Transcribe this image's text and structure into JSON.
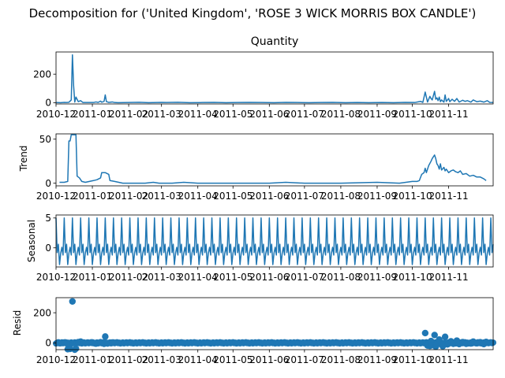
{
  "figure": {
    "suptitle": "Decomposition for ('United Kingdom', 'ROSE 3 WICK MORRIS BOX CANDLE')",
    "series_color": "#1f77b4",
    "x_tick_labels": [
      "2010-12",
      "2011-01",
      "2011-02",
      "2011-03",
      "2011-04",
      "2011-05",
      "2011-06",
      "2011-07",
      "2011-08",
      "2011-09",
      "2011-10",
      "2011-11"
    ]
  },
  "chart_data": [
    {
      "type": "line",
      "title": "Quantity",
      "ylabel": "",
      "xlim": [
        "2010-12-01",
        "2011-12-09"
      ],
      "ylim": [
        -8,
        355
      ],
      "yticks": [
        0,
        200
      ],
      "x_ticks": [
        "2010-12-01",
        "2011-01-01",
        "2011-02-01",
        "2011-03-01",
        "2011-04-01",
        "2011-05-01",
        "2011-06-01",
        "2011-07-01",
        "2011-08-01",
        "2011-09-01",
        "2011-10-01",
        "2011-11-01"
      ],
      "points": [
        [
          "2010-12-01",
          2
        ],
        [
          "2010-12-05",
          1
        ],
        [
          "2010-12-08",
          3
        ],
        [
          "2010-12-10",
          2
        ],
        [
          "2010-12-12",
          4
        ],
        [
          "2010-12-14",
          20
        ],
        [
          "2010-12-15",
          335
        ],
        [
          "2010-12-16",
          120
        ],
        [
          "2010-12-17",
          5
        ],
        [
          "2010-12-18",
          40
        ],
        [
          "2010-12-20",
          8
        ],
        [
          "2010-12-22",
          15
        ],
        [
          "2010-12-24",
          2
        ],
        [
          "2011-01-02",
          2
        ],
        [
          "2011-01-04",
          6
        ],
        [
          "2011-01-06",
          3
        ],
        [
          "2011-01-08",
          12
        ],
        [
          "2011-01-09",
          4
        ],
        [
          "2011-01-11",
          10
        ],
        [
          "2011-01-12",
          55
        ],
        [
          "2011-01-13",
          8
        ],
        [
          "2011-01-15",
          3
        ],
        [
          "2011-01-18",
          6
        ],
        [
          "2011-01-20",
          2
        ],
        [
          "2011-01-23",
          1
        ],
        [
          "2011-02-01",
          2
        ],
        [
          "2011-02-10",
          4
        ],
        [
          "2011-02-18",
          1
        ],
        [
          "2011-03-01",
          3
        ],
        [
          "2011-03-05",
          2
        ],
        [
          "2011-03-15",
          4
        ],
        [
          "2011-03-25",
          1
        ],
        [
          "2011-04-05",
          2
        ],
        [
          "2011-04-15",
          3
        ],
        [
          "2011-04-25",
          1
        ],
        [
          "2011-05-05",
          2
        ],
        [
          "2011-05-15",
          3
        ],
        [
          "2011-05-25",
          2
        ],
        [
          "2011-06-05",
          1
        ],
        [
          "2011-06-15",
          3
        ],
        [
          "2011-06-25",
          2
        ],
        [
          "2011-07-05",
          1
        ],
        [
          "2011-07-15",
          2
        ],
        [
          "2011-07-25",
          3
        ],
        [
          "2011-08-05",
          1
        ],
        [
          "2011-08-15",
          2
        ],
        [
          "2011-08-25",
          1
        ],
        [
          "2011-09-05",
          2
        ],
        [
          "2011-09-15",
          1
        ],
        [
          "2011-09-25",
          3
        ],
        [
          "2011-10-03",
          2
        ],
        [
          "2011-10-08",
          10
        ],
        [
          "2011-10-10",
          3
        ],
        [
          "2011-10-12",
          75
        ],
        [
          "2011-10-14",
          5
        ],
        [
          "2011-10-16",
          45
        ],
        [
          "2011-10-17",
          30
        ],
        [
          "2011-10-18",
          20
        ],
        [
          "2011-10-20",
          80
        ],
        [
          "2011-10-21",
          25
        ],
        [
          "2011-10-22",
          35
        ],
        [
          "2011-10-23",
          15
        ],
        [
          "2011-10-24",
          40
        ],
        [
          "2011-10-25",
          8
        ],
        [
          "2011-10-26",
          20
        ],
        [
          "2011-10-28",
          5
        ],
        [
          "2011-10-29",
          55
        ],
        [
          "2011-10-30",
          10
        ],
        [
          "2011-11-01",
          30
        ],
        [
          "2011-11-02",
          8
        ],
        [
          "2011-11-04",
          25
        ],
        [
          "2011-11-06",
          10
        ],
        [
          "2011-11-08",
          30
        ],
        [
          "2011-11-10",
          5
        ],
        [
          "2011-11-13",
          18
        ],
        [
          "2011-11-15",
          10
        ],
        [
          "2011-11-17",
          15
        ],
        [
          "2011-11-20",
          5
        ],
        [
          "2011-11-22",
          20
        ],
        [
          "2011-11-25",
          8
        ],
        [
          "2011-11-28",
          12
        ],
        [
          "2011-12-01",
          5
        ],
        [
          "2011-12-04",
          15
        ],
        [
          "2011-12-06",
          3
        ],
        [
          "2011-12-09",
          2
        ]
      ]
    },
    {
      "type": "line",
      "title": "",
      "ylabel": "Trend",
      "xlim": [
        "2010-12-01",
        "2011-12-09"
      ],
      "ylim": [
        -3,
        56
      ],
      "yticks": [
        0,
        50
      ],
      "x_ticks": [
        "2010-12-01",
        "2011-01-01",
        "2011-02-01",
        "2011-03-01",
        "2011-04-01",
        "2011-05-01",
        "2011-06-01",
        "2011-07-01",
        "2011-08-01",
        "2011-09-01",
        "2011-10-01",
        "2011-11-01"
      ],
      "points": [
        [
          "2010-12-04",
          1
        ],
        [
          "2010-12-08",
          1
        ],
        [
          "2010-12-11",
          2
        ],
        [
          "2010-12-12",
          48
        ],
        [
          "2010-12-13",
          48
        ],
        [
          "2010-12-14",
          55
        ],
        [
          "2010-12-18",
          55
        ],
        [
          "2010-12-19",
          8
        ],
        [
          "2010-12-21",
          6
        ],
        [
          "2010-12-23",
          2
        ],
        [
          "2010-12-26",
          1
        ],
        [
          "2011-01-02",
          3
        ],
        [
          "2011-01-05",
          4
        ],
        [
          "2011-01-08",
          6
        ],
        [
          "2011-01-09",
          12
        ],
        [
          "2011-01-12",
          12
        ],
        [
          "2011-01-15",
          10
        ],
        [
          "2011-01-16",
          3
        ],
        [
          "2011-01-20",
          2
        ],
        [
          "2011-01-27",
          0
        ],
        [
          "2011-02-15",
          0
        ],
        [
          "2011-02-22",
          1
        ],
        [
          "2011-02-27",
          0
        ],
        [
          "2011-03-10",
          0
        ],
        [
          "2011-03-20",
          1
        ],
        [
          "2011-04-01",
          0
        ],
        [
          "2011-05-01",
          0
        ],
        [
          "2011-06-01",
          0
        ],
        [
          "2011-06-15",
          1
        ],
        [
          "2011-07-01",
          0
        ],
        [
          "2011-08-01",
          0
        ],
        [
          "2011-09-01",
          1
        ],
        [
          "2011-09-20",
          0
        ],
        [
          "2011-10-01",
          2
        ],
        [
          "2011-10-05",
          2
        ],
        [
          "2011-10-07",
          3
        ],
        [
          "2011-10-09",
          10
        ],
        [
          "2011-10-11",
          12
        ],
        [
          "2011-10-12",
          17
        ],
        [
          "2011-10-13",
          12
        ],
        [
          "2011-10-15",
          20
        ],
        [
          "2011-10-17",
          25
        ],
        [
          "2011-10-18",
          28
        ],
        [
          "2011-10-19",
          30
        ],
        [
          "2011-10-20",
          32
        ],
        [
          "2011-10-21",
          28
        ],
        [
          "2011-10-22",
          22
        ],
        [
          "2011-10-23",
          20
        ],
        [
          "2011-10-24",
          16
        ],
        [
          "2011-10-25",
          22
        ],
        [
          "2011-10-26",
          15
        ],
        [
          "2011-10-28",
          18
        ],
        [
          "2011-10-29",
          14
        ],
        [
          "2011-10-30",
          16
        ],
        [
          "2011-11-01",
          12
        ],
        [
          "2011-11-03",
          14
        ],
        [
          "2011-11-05",
          15
        ],
        [
          "2011-11-07",
          13
        ],
        [
          "2011-11-09",
          12
        ],
        [
          "2011-11-11",
          14
        ],
        [
          "2011-11-13",
          10
        ],
        [
          "2011-11-16",
          11
        ],
        [
          "2011-11-19",
          8
        ],
        [
          "2011-11-22",
          9
        ],
        [
          "2011-11-25",
          7
        ],
        [
          "2011-11-28",
          7
        ],
        [
          "2011-12-01",
          5
        ],
        [
          "2011-12-03",
          3
        ]
      ]
    },
    {
      "type": "line",
      "title": "",
      "ylabel": "Seasonal",
      "xlim": [
        "2010-12-01",
        "2011-12-09"
      ],
      "ylim": [
        -3.2,
        5.5
      ],
      "yticks": [
        0,
        5
      ],
      "x_ticks": [
        "2010-12-01",
        "2011-01-01",
        "2011-02-01",
        "2011-03-01",
        "2011-04-01",
        "2011-05-01",
        "2011-06-01",
        "2011-07-01",
        "2011-08-01",
        "2011-09-01",
        "2011-10-01",
        "2011-11-01"
      ],
      "period_days": 7,
      "weekly_pattern": [
        5.0,
        -0.8,
        0.6,
        -2.8,
        -0.9,
        0.1,
        -1.2
      ],
      "points": []
    },
    {
      "type": "scatter",
      "title": "",
      "ylabel": "Resid",
      "xlim": [
        "2010-12-01",
        "2011-12-09"
      ],
      "ylim": [
        -45,
        300
      ],
      "yticks": [
        0,
        200
      ],
      "x_ticks": [
        "2010-12-01",
        "2011-01-01",
        "2011-02-01",
        "2011-03-01",
        "2011-04-01",
        "2011-05-01",
        "2011-06-01",
        "2011-07-01",
        "2011-08-01",
        "2011-09-01",
        "2011-10-01",
        "2011-11-01"
      ],
      "points": [
        [
          "2010-12-03",
          3
        ],
        [
          "2010-12-05",
          -2
        ],
        [
          "2010-12-08",
          2
        ],
        [
          "2010-12-10",
          -3
        ],
        [
          "2010-12-11",
          -42
        ],
        [
          "2010-12-13",
          -40
        ],
        [
          "2010-12-15",
          275
        ],
        [
          "2010-12-17",
          -45
        ],
        [
          "2010-12-18",
          -38
        ],
        [
          "2010-12-20",
          5
        ],
        [
          "2010-12-22",
          8
        ],
        [
          "2010-12-24",
          2
        ],
        [
          "2010-12-26",
          -1
        ],
        [
          "2011-01-01",
          3
        ],
        [
          "2011-01-04",
          -5
        ],
        [
          "2011-01-08",
          4
        ],
        [
          "2011-01-11",
          -6
        ],
        [
          "2011-01-12",
          42
        ],
        [
          "2011-01-14",
          -4
        ],
        [
          "2011-01-18",
          2
        ],
        [
          "2011-10-12",
          65
        ],
        [
          "2011-10-14",
          -18
        ],
        [
          "2011-10-16",
          -20
        ],
        [
          "2011-10-17",
          12
        ],
        [
          "2011-10-18",
          -15
        ],
        [
          "2011-10-20",
          52
        ],
        [
          "2011-10-21",
          -25
        ],
        [
          "2011-10-22",
          -8
        ],
        [
          "2011-10-24",
          22
        ],
        [
          "2011-10-26",
          -12
        ],
        [
          "2011-10-27",
          -22
        ],
        [
          "2011-10-29",
          40
        ],
        [
          "2011-10-31",
          -10
        ],
        [
          "2011-11-01",
          -5
        ],
        [
          "2011-11-03",
          10
        ],
        [
          "2011-11-05",
          -6
        ],
        [
          "2011-11-08",
          15
        ],
        [
          "2011-11-10",
          -8
        ],
        [
          "2011-11-13",
          5
        ],
        [
          "2011-11-16",
          -6
        ],
        [
          "2011-11-20",
          -4
        ],
        [
          "2011-11-22",
          8
        ],
        [
          "2011-11-25",
          -3
        ],
        [
          "2011-11-28",
          4
        ],
        [
          "2011-12-01",
          -8
        ],
        [
          "2011-12-03",
          6
        ]
      ]
    }
  ]
}
